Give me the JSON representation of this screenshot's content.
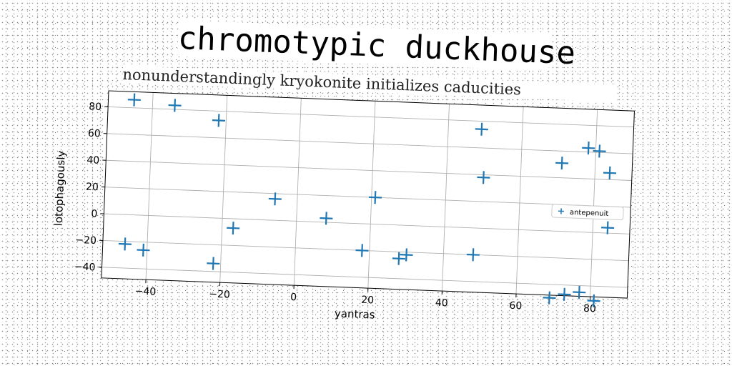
{
  "title": "chromotypic duckhouse",
  "subtitle": "nonunderstandingly kryokonite initializes caducities",
  "colors": {
    "marker": "#1f77b4",
    "grid": "#b0b0b0"
  },
  "chart_data": {
    "type": "scatter",
    "title": "chromotypic duckhouse",
    "subtitle": "nonunderstandingly kryokonite initializes caducities",
    "xlabel": "yantras",
    "ylabel": "lotophagously",
    "xlim": [
      -52,
      90
    ],
    "ylim": [
      -48,
      92
    ],
    "xticks": [
      -40,
      -20,
      0,
      20,
      40,
      60,
      80
    ],
    "yticks": [
      -40,
      -20,
      0,
      20,
      40,
      60,
      80
    ],
    "grid": true,
    "legend_position": "right",
    "series": [
      {
        "name": "antepenuit",
        "marker": "plus",
        "points": [
          [
            -45,
            86
          ],
          [
            -34,
            83
          ],
          [
            -22,
            73
          ],
          [
            -6,
            16
          ],
          [
            21,
            20
          ],
          [
            8,
            3
          ],
          [
            -17,
            -7
          ],
          [
            -46,
            -22
          ],
          [
            -41,
            -26
          ],
          [
            -22,
            -34
          ],
          [
            18,
            -20
          ],
          [
            28,
            -25
          ],
          [
            30,
            -22
          ],
          [
            48,
            -20
          ],
          [
            49,
            74
          ],
          [
            50,
            38
          ],
          [
            71,
            51
          ],
          [
            78,
            63
          ],
          [
            81,
            61
          ],
          [
            84,
            45
          ],
          [
            84,
            4
          ],
          [
            69,
            -50
          ],
          [
            73,
            -47
          ],
          [
            77,
            -45
          ],
          [
            81,
            -51
          ]
        ]
      }
    ]
  }
}
